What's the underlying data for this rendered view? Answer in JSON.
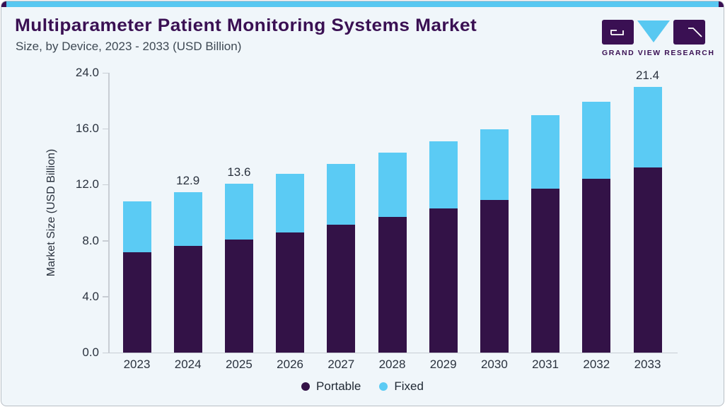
{
  "header": {
    "title": "Multiparameter Patient Monitoring Systems Market",
    "subtitle": "Size, by Device, 2023 - 2033 (USD Billion)"
  },
  "logo": {
    "brand": "GRAND VIEW RESEARCH"
  },
  "colors": {
    "accent_blue": "#58C8F1",
    "brand_purple": "#3A1053",
    "bar_portable": "#331247",
    "bar_fixed": "#5BCBF4",
    "card_background": "#F0F6FA",
    "axis_line": "#C8CDD4",
    "text_dark": "#2A323E"
  },
  "chart_data": {
    "type": "bar",
    "stacked": true,
    "title": "Multiparameter Patient Monitoring Systems Market Size, by Device, 2023 - 2033 (USD Billion)",
    "categories": [
      "2023",
      "2024",
      "2025",
      "2026",
      "2027",
      "2028",
      "2029",
      "2030",
      "2031",
      "2032",
      "2033"
    ],
    "series": [
      {
        "name": "Portable",
        "color": "#331247",
        "values": [
          8.1,
          8.6,
          9.1,
          9.7,
          10.3,
          10.9,
          11.6,
          12.3,
          13.2,
          14.0,
          14.9
        ]
      },
      {
        "name": "Fixed",
        "color": "#5BCBF4",
        "values": [
          4.1,
          4.3,
          4.5,
          4.7,
          4.9,
          5.2,
          5.4,
          5.7,
          5.9,
          6.2,
          6.5
        ]
      }
    ],
    "totals": [
      12.2,
      12.9,
      13.6,
      14.4,
      15.2,
      16.1,
      17.0,
      18.0,
      19.1,
      20.2,
      21.4
    ],
    "bar_labels": [
      {
        "category": "2024",
        "text": "12.9"
      },
      {
        "category": "2025",
        "text": "13.6"
      },
      {
        "category": "2033",
        "text": "21.4"
      }
    ],
    "ylabel": "Market Size (USD Billion)",
    "xlabel": "",
    "y_ticks": [
      "0.0",
      "4.0",
      "8.0",
      "12.0",
      "16.0",
      "24.0"
    ],
    "ylim": [
      0,
      24
    ],
    "grid": false,
    "legend_position": "bottom"
  }
}
